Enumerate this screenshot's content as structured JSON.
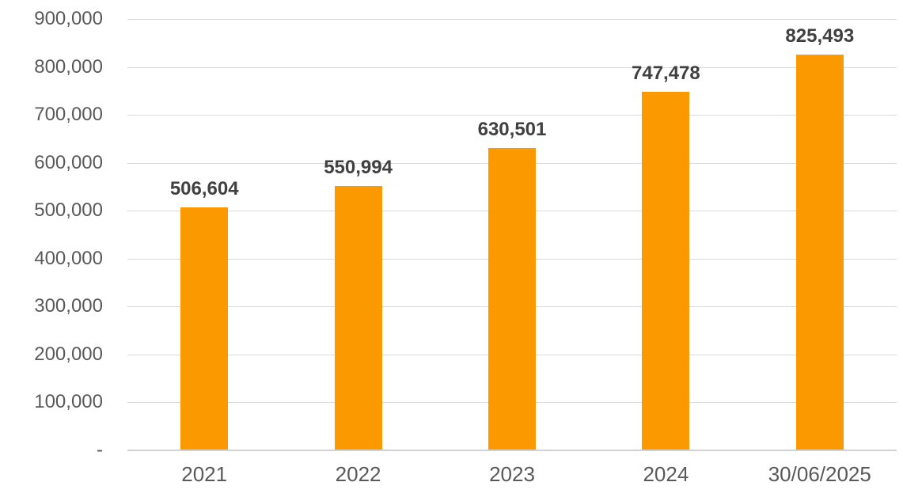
{
  "chart_data": {
    "type": "bar",
    "title": "",
    "xlabel": "",
    "ylabel": "",
    "categories": [
      "2021",
      "2022",
      "2023",
      "2024",
      "30/06/2025"
    ],
    "values": [
      506604,
      550994,
      630501,
      747478,
      825493
    ],
    "data_labels": [
      "506,604",
      "550,994",
      "630,501",
      "747,478",
      "825,493"
    ],
    "ylim": [
      0,
      900000
    ],
    "y_tick_interval": 100000,
    "y_tick_labels": [
      "900,000",
      "800,000",
      "700,000",
      "600,000",
      "500,000",
      "400,000",
      "300,000",
      "200,000",
      "100,000",
      "-"
    ],
    "grid": true,
    "legend_position": "none",
    "colors": {
      "bar": "#FA9A00",
      "gridline": "#D9D9D9",
      "axis_line": "#D2D2D2",
      "tick_label": "#595959",
      "data_label": "#404040",
      "background": "#FFFFFF"
    }
  }
}
